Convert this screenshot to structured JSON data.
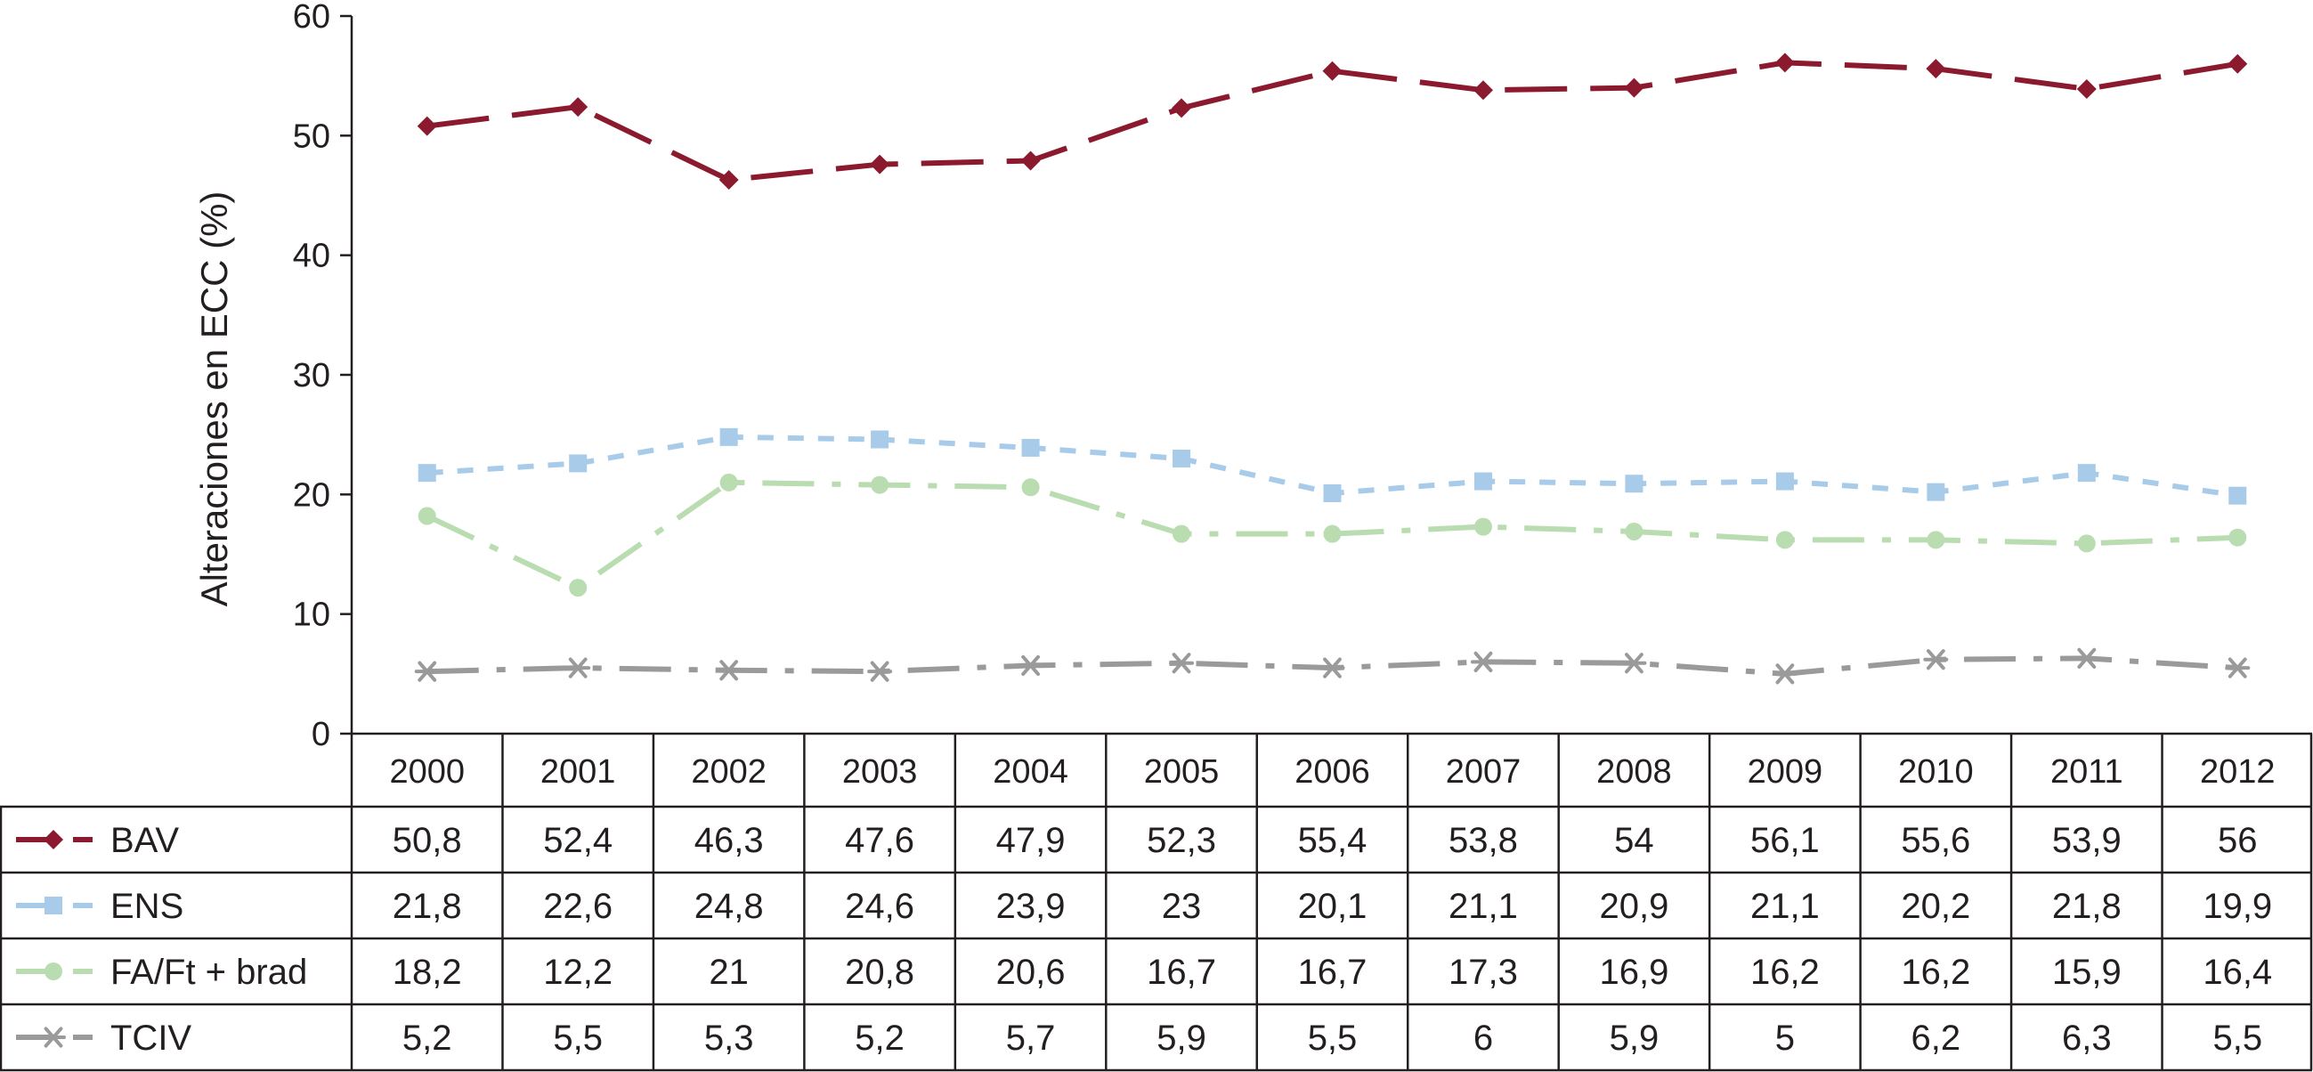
{
  "chart_data": {
    "type": "line",
    "title": "",
    "xlabel": "",
    "ylabel": "Alteraciones en ECC (%)",
    "ylim": [
      0,
      60
    ],
    "yticks": [
      "0",
      "10",
      "20",
      "30",
      "40",
      "50",
      "60"
    ],
    "grid": false,
    "categories": [
      "2000",
      "2001",
      "2002",
      "2003",
      "2004",
      "2005",
      "2006",
      "2007",
      "2008",
      "2009",
      "2010",
      "2011",
      "2012"
    ],
    "series": [
      {
        "name": "BAV",
        "color": "#8b1a2e",
        "dash": "long-dash",
        "marker": "diamond",
        "values": [
          50.8,
          52.4,
          46.3,
          47.6,
          47.9,
          52.3,
          55.4,
          53.8,
          54,
          56.1,
          55.6,
          53.9,
          56
        ],
        "labels": [
          "50,8",
          "52,4",
          "46,3",
          "47,6",
          "47,9",
          "52,3",
          "55,4",
          "53,8",
          "54",
          "56,1",
          "55,6",
          "53,9",
          "56"
        ]
      },
      {
        "name": "ENS",
        "color": "#a7cbe8",
        "dash": "dotted",
        "marker": "square",
        "values": [
          21.8,
          22.6,
          24.8,
          24.6,
          23.9,
          23,
          20.1,
          21.1,
          20.9,
          21.1,
          20.2,
          21.8,
          19.9
        ],
        "labels": [
          "21,8",
          "22,6",
          "24,8",
          "24,6",
          "23,9",
          "23",
          "20,1",
          "21,1",
          "20,9",
          "21,1",
          "20,2",
          "21,8",
          "19,9"
        ]
      },
      {
        "name": "FA/Ft + brad",
        "color": "#b9dcb0",
        "dash": "dash-dot",
        "marker": "circle",
        "values": [
          18.2,
          12.2,
          21,
          20.8,
          20.6,
          16.7,
          16.7,
          17.3,
          16.9,
          16.2,
          16.2,
          15.9,
          16.4
        ],
        "labels": [
          "18,2",
          "12,2",
          "21",
          "20,8",
          "20,6",
          "16,7",
          "16,7",
          "17,3",
          "16,9",
          "16,2",
          "16,2",
          "15,9",
          "16,4"
        ]
      },
      {
        "name": "TCIV",
        "color": "#9a9a9a",
        "dash": "dash-dot",
        "marker": "asterisk",
        "values": [
          5.2,
          5.5,
          5.3,
          5.2,
          5.7,
          5.9,
          5.5,
          6,
          5.9,
          5,
          6.2,
          6.3,
          5.5
        ],
        "labels": [
          "5,2",
          "5,5",
          "5,3",
          "5,2",
          "5,7",
          "5,9",
          "5,5",
          "6",
          "5,9",
          "5",
          "6,2",
          "6,3",
          "5,5"
        ]
      }
    ]
  }
}
